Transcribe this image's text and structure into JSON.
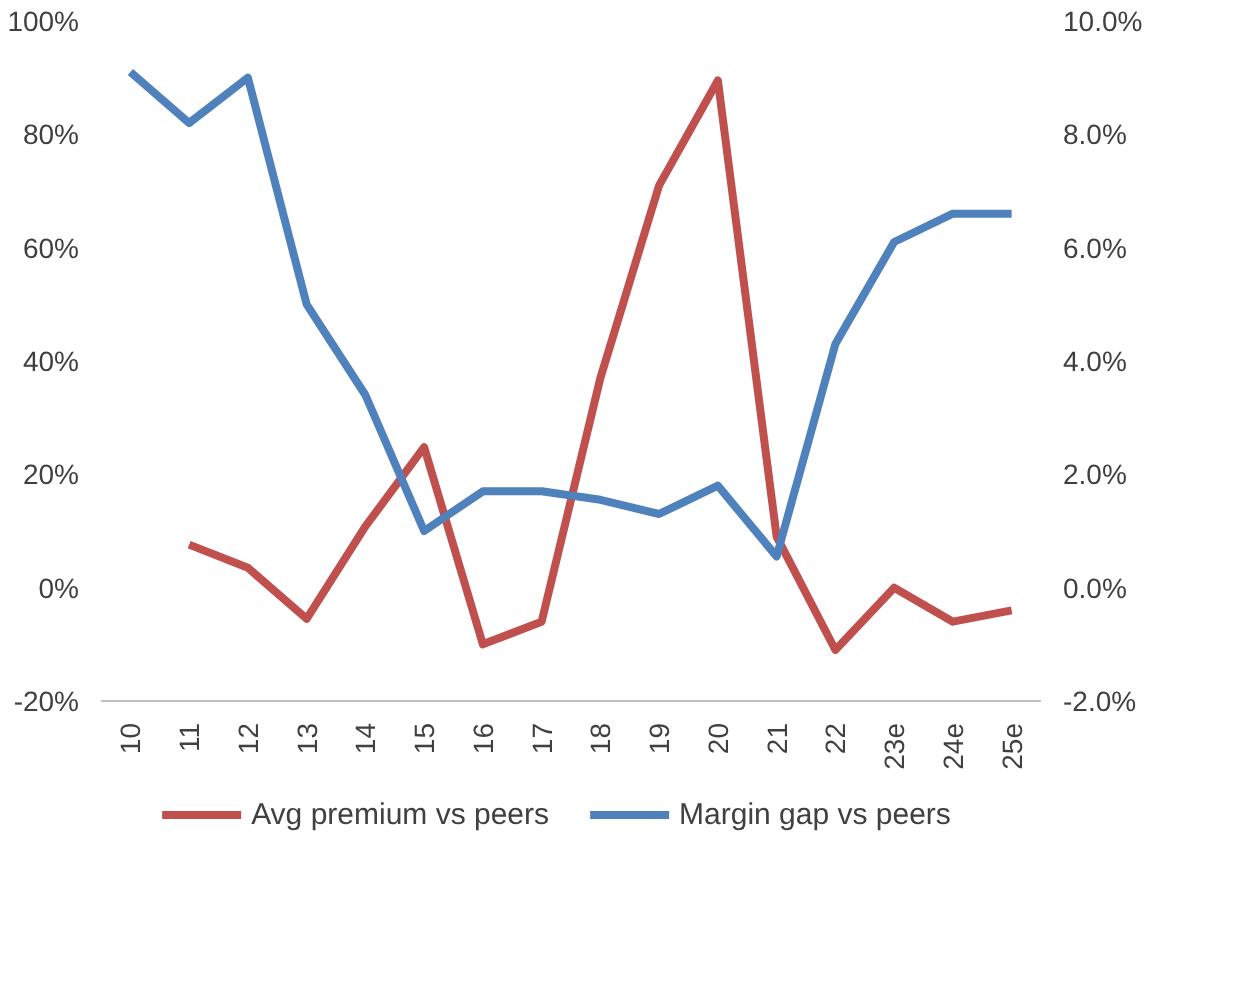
{
  "chart_data": {
    "type": "line",
    "categories": [
      "10",
      "11",
      "12",
      "13",
      "14",
      "15",
      "16",
      "17",
      "18",
      "19",
      "20",
      "21",
      "22",
      "23e",
      "24e",
      "25e"
    ],
    "series": [
      {
        "name": "Avg premium vs peers",
        "color": "#c0504d",
        "values": [
          null,
          7.6,
          3.5,
          -5.5,
          10.8,
          24.8,
          -10,
          -6,
          37,
          71,
          89.5,
          9,
          -11,
          0,
          -6,
          -4
        ]
      },
      {
        "name": "Margin gap vs peers",
        "color": "#4f81bd",
        "axis": "y2",
        "values": [
          9.1,
          8.2,
          9.0,
          5.0,
          3.4,
          1.0,
          1.7,
          1.7,
          1.55,
          1.3,
          1.8,
          0.55,
          4.3,
          6.1,
          6.6,
          6.6
        ]
      }
    ],
    "ylim": [
      -20,
      100
    ],
    "yticks": [
      {
        "value": -20,
        "label": "-20%"
      },
      {
        "value": 0,
        "label": "0%"
      },
      {
        "value": 20,
        "label": "20%"
      },
      {
        "value": 40,
        "label": "40%"
      },
      {
        "value": 60,
        "label": "60%"
      },
      {
        "value": 80,
        "label": "80%"
      },
      {
        "value": 100,
        "label": "100%"
      }
    ],
    "y2lim": [
      -2,
      10
    ],
    "y2ticks": [
      {
        "value": -2,
        "label": "-2.0%"
      },
      {
        "value": 0,
        "label": "0.0%"
      },
      {
        "value": 2,
        "label": "2.0%"
      },
      {
        "value": 4,
        "label": "4.0%"
      },
      {
        "value": 6,
        "label": "6.0%"
      },
      {
        "value": 8,
        "label": "8.0%"
      },
      {
        "value": 10,
        "label": "10.0%"
      }
    ],
    "grid": false,
    "legend": "bottom",
    "marker": "none",
    "line_style": "solid"
  }
}
